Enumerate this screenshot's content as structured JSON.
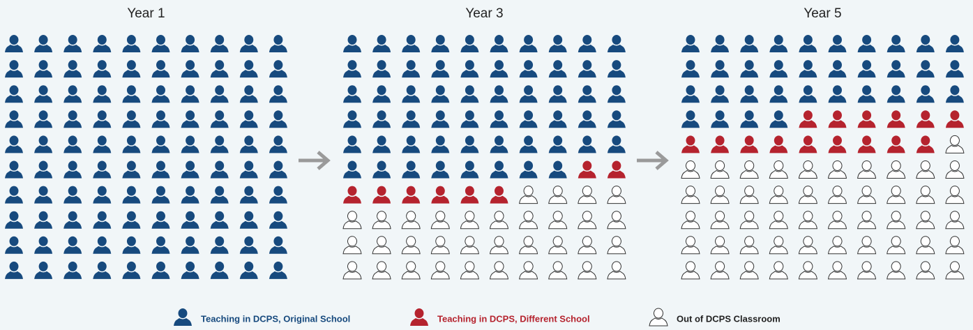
{
  "chart_data": {
    "type": "waffle",
    "categories": [
      "Year 1",
      "Year 3",
      "Year 5"
    ],
    "series": [
      {
        "name": "Teaching in DCPS, Original School",
        "color": "#174a7e",
        "values": [
          100,
          58,
          34
        ]
      },
      {
        "name": "Teaching in DCPS, Different School",
        "color": "#b5232e",
        "values": [
          0,
          8,
          15
        ]
      },
      {
        "name": "Out of DCPS Classroom",
        "color": "#ffffff",
        "values": [
          0,
          34,
          51
        ]
      }
    ]
  }
}
